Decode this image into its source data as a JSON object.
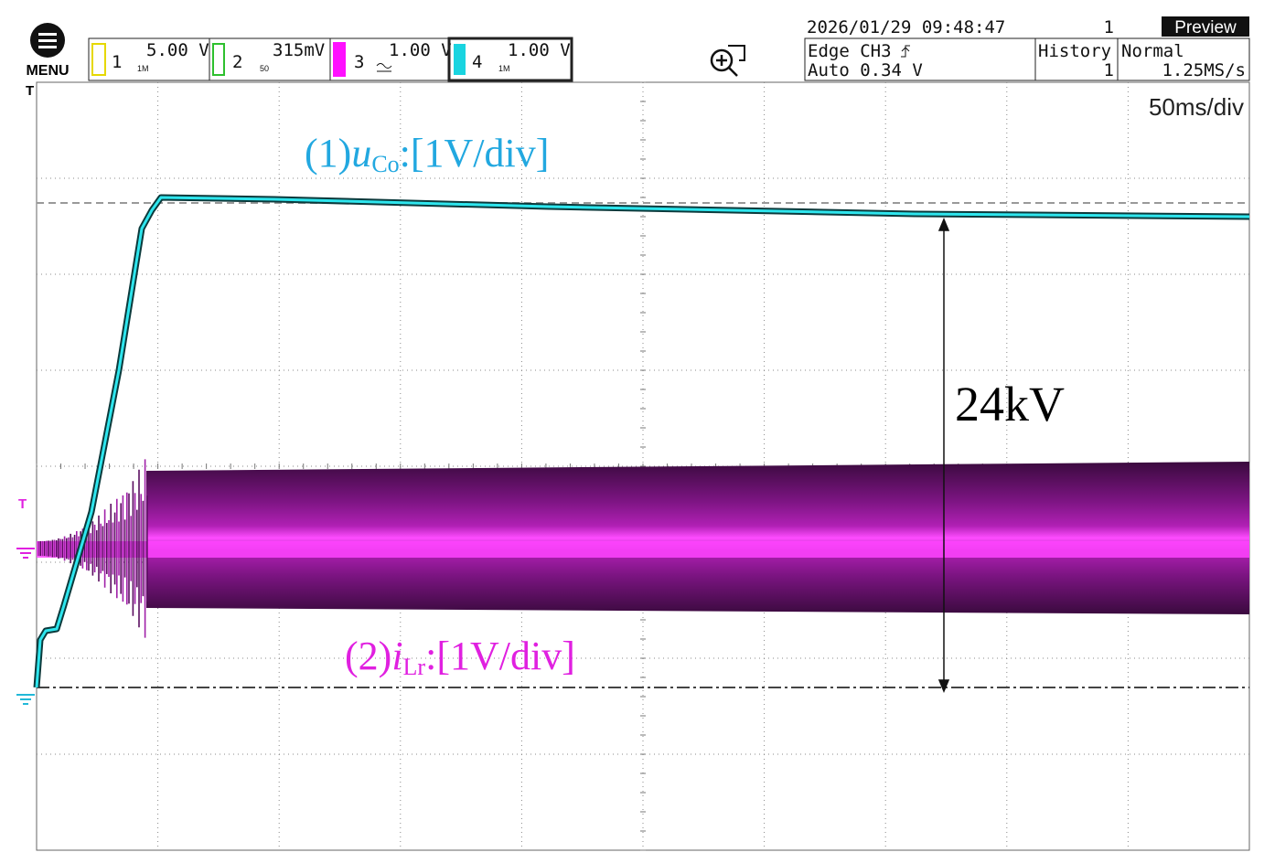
{
  "header": {
    "menu": "MENU",
    "channels": [
      {
        "number": "1",
        "scale": "5.00 V",
        "impedance": "1M"
      },
      {
        "number": "2",
        "scale": "315mV",
        "impedance": "50"
      },
      {
        "number": "3",
        "scale": "1.00 V"
      },
      {
        "number": "4",
        "scale": "1.00 V",
        "impedance": "1M"
      }
    ],
    "datetime": "2026/01/29 09:48:47",
    "count": "1",
    "mode_button": "Preview",
    "trigger": {
      "source": "Edge CH3",
      "level": "Auto 0.34 V"
    },
    "history": {
      "label": "History",
      "value": "1"
    },
    "acquisition": {
      "mode": "Normal",
      "rate": "1.25MS/s"
    }
  },
  "screen": {
    "timebase": "50ms/div",
    "trigger_marker": "T",
    "channel_marker": "T",
    "labels": {
      "voltage": {
        "prefix": "(1)",
        "symbol": "u",
        "subscript": "Co",
        "scale": ":[1V/div]"
      },
      "current": {
        "prefix": "(2)",
        "symbol": "i",
        "subscript": "Lr",
        "scale": ":[1V/div]"
      },
      "span": "24kV"
    }
  }
}
